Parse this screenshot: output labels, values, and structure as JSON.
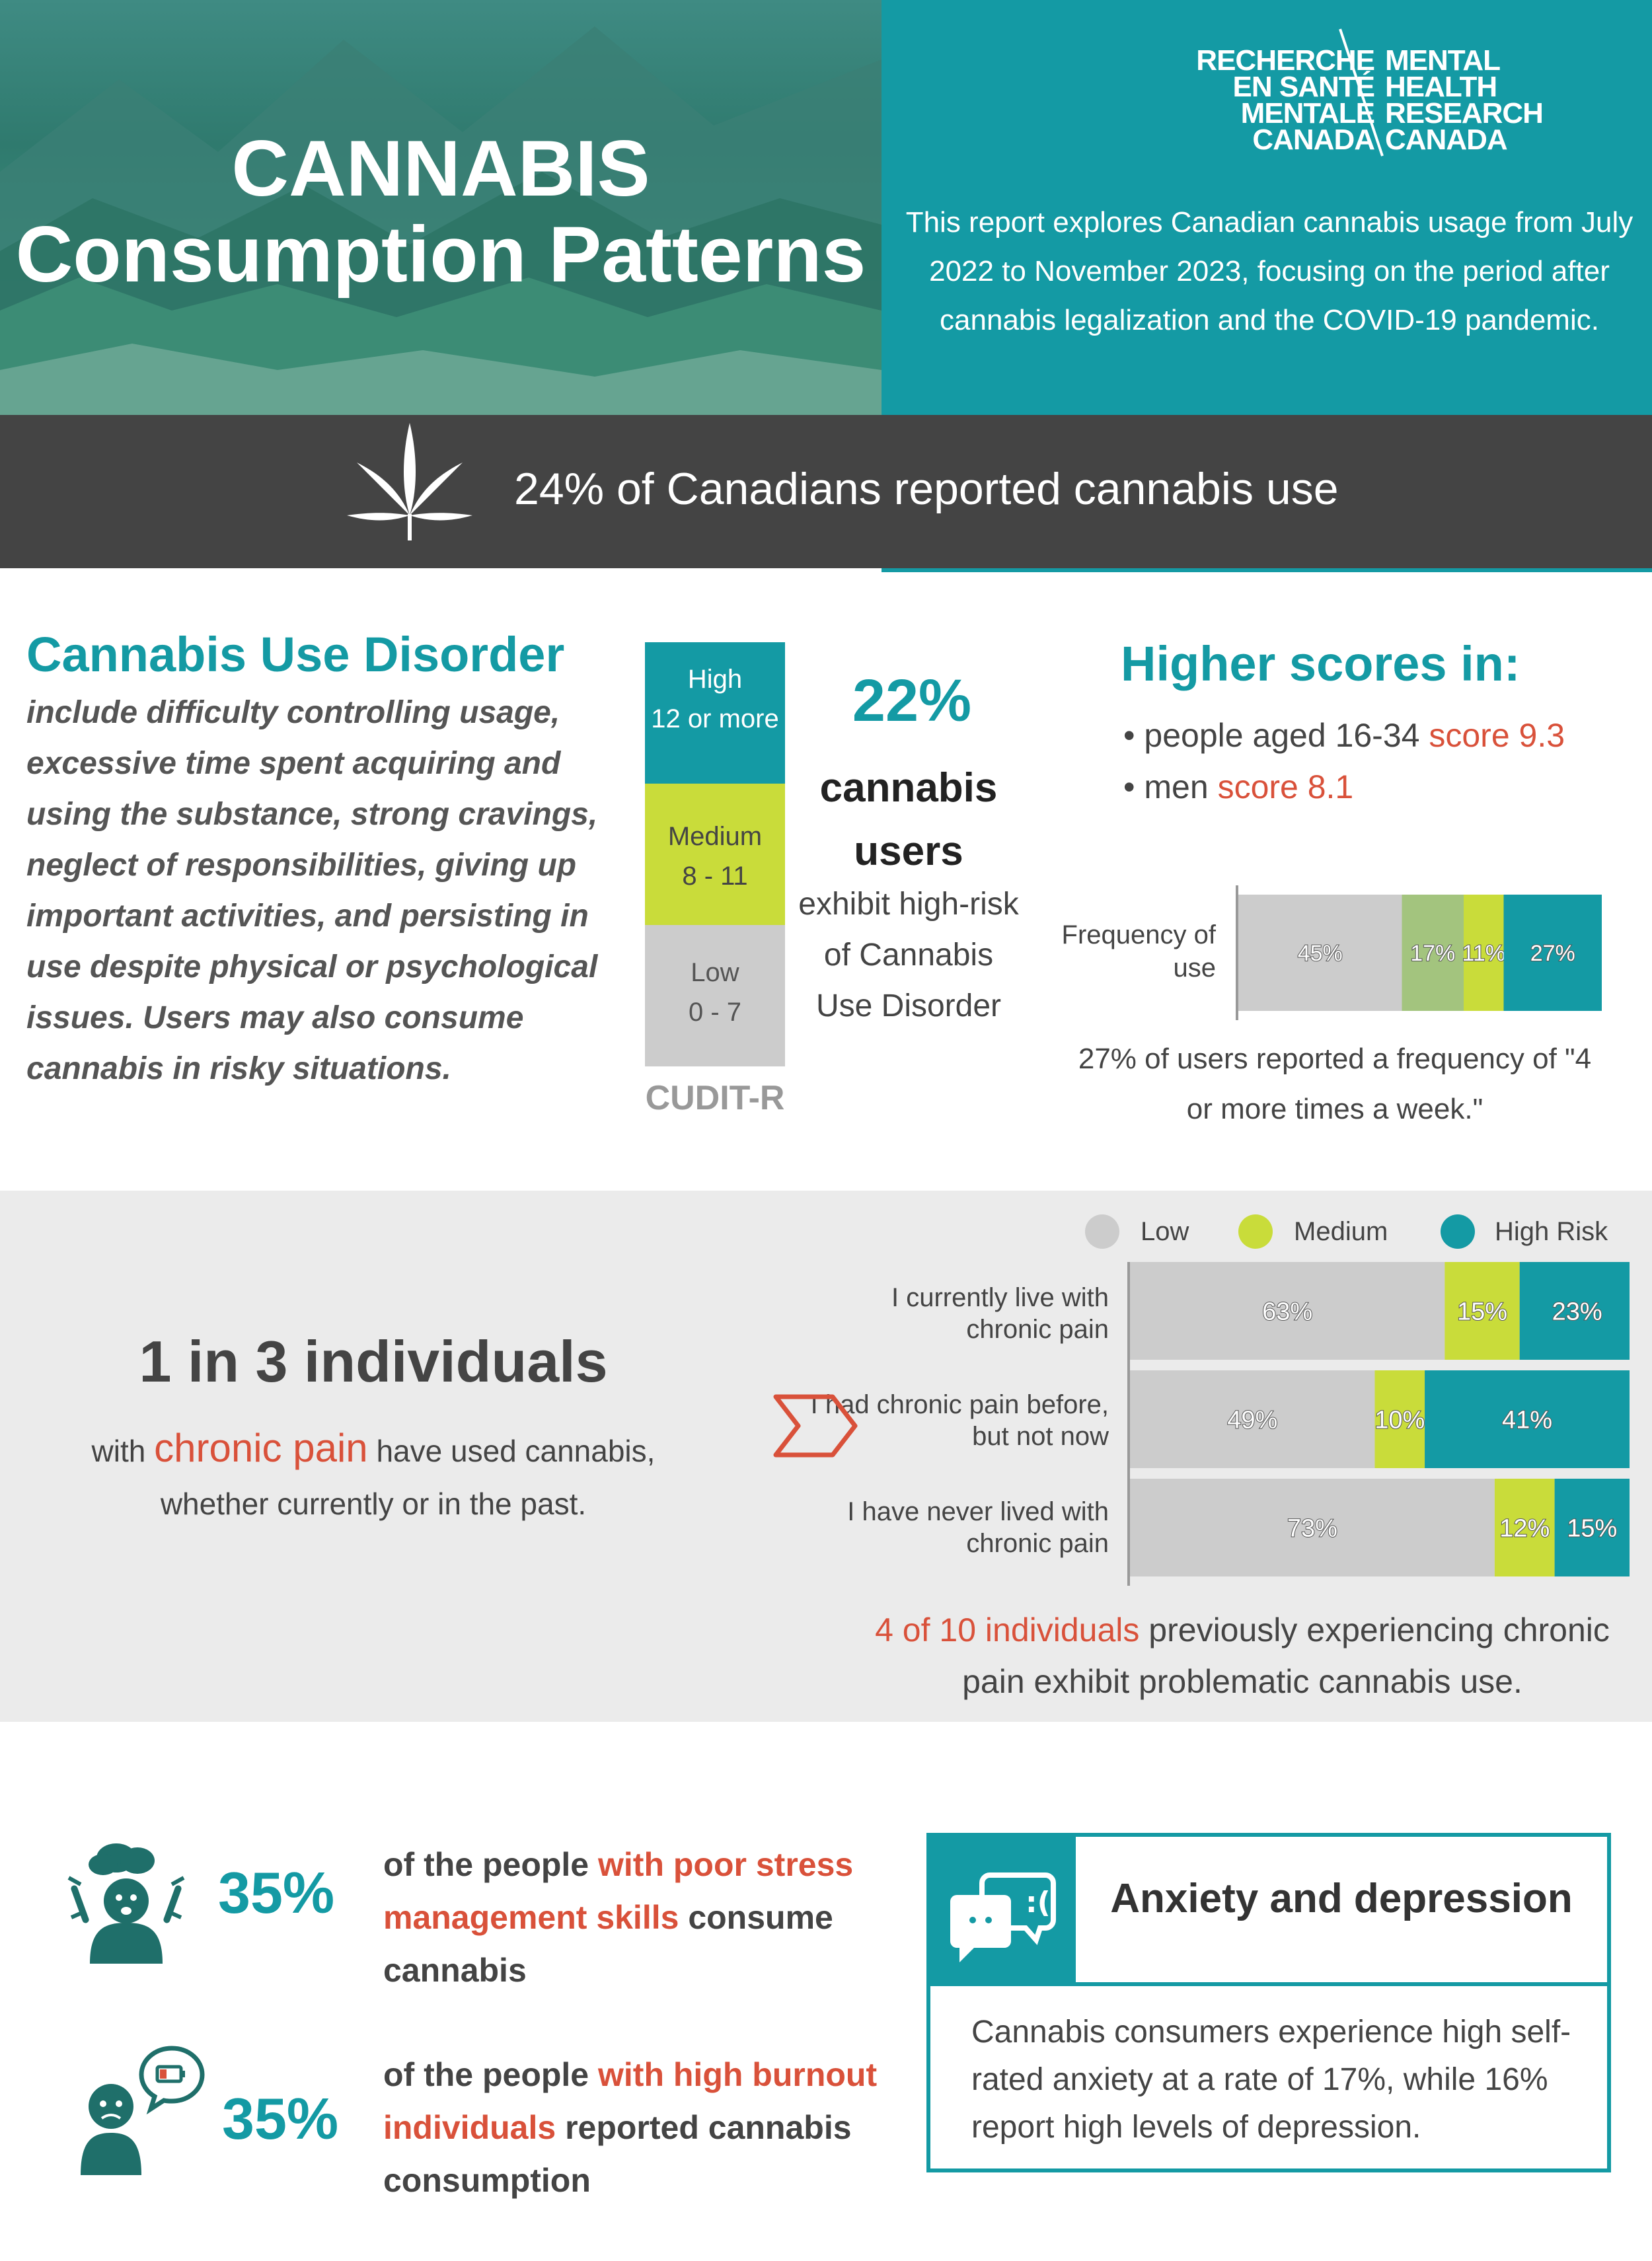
{
  "header": {
    "title_line1": "CANNABIS",
    "title_line2": "Consumption Patterns",
    "logo_fr": [
      "RECHERCHE",
      "EN SANTÉ",
      "MENTALE",
      "CANADA"
    ],
    "logo_en": [
      "MENTAL",
      "HEALTH",
      "RESEARCH",
      "CANADA"
    ],
    "intro": "This report explores Canadian cannabis usage from July 2022 to November 2023, focusing on the period after cannabis legalization and the COVID-19 pandemic."
  },
  "band": {
    "text": "24% of Canadians reported cannabis use",
    "icon": "cannabis-leaf-icon"
  },
  "cud": {
    "title": "Cannabis Use Disorder",
    "description": "include difficulty controlling usage, excessive time spent acquiring and using the substance, strong cravings, neglect of responsibilities, giving up important activities, and persisting in use despite physical or psychological issues. Users may also consume cannabis in risky situations.",
    "scale": [
      {
        "label": "High",
        "range": "12 or more"
      },
      {
        "label": "Medium",
        "range": "8 - 11"
      },
      {
        "label": "Low",
        "range": "0 - 7"
      }
    ],
    "scale_name": "CUDIT-R",
    "stat_pct": "22%",
    "stat_line1": "cannabis users",
    "stat_line2": "exhibit high-risk of Cannabis Use Disorder"
  },
  "higher_scores": {
    "title": "Higher scores in:",
    "items": [
      {
        "label": "people aged 16-34",
        "score": "score 9.3"
      },
      {
        "label": "men",
        "score": "score 8.1"
      }
    ],
    "freq_label": "Frequency of use",
    "freq_note": "27% of users reported a frequency of \"4 or more times a week.\""
  },
  "pain": {
    "headline": "1 in 3 individuals",
    "sub_pre": "with",
    "sub_highlight": "chronic pain",
    "sub_post": "have used cannabis, whether currently or in the past.",
    "note_highlight": "4 of 10 individuals",
    "note_rest": "previously experiencing chronic pain exhibit problematic cannabis use."
  },
  "stats": [
    {
      "pct": "35%",
      "pre": "of the people",
      "highlight": "with poor stress management skills",
      "post": "consume cannabis",
      "icon": "stressed-person-icon"
    },
    {
      "pct": "35%",
      "pre": "of the people",
      "highlight": "with high burnout individuals",
      "post": "reported cannabis consumption",
      "icon": "burnout-person-icon"
    }
  ],
  "anxiety": {
    "title": "Anxiety and depression",
    "text": "Cannabis consumers experience high self-rated anxiety at a rate of 17%, while 16% report high levels of depression.",
    "icon": "sad-chat-icon"
  },
  "colors": {
    "teal": "#149aa4",
    "lime": "#c9dc3a",
    "gray": "#cccccc",
    "sage": "#a3c47e",
    "red": "#d9513a",
    "dark_band": "#444444"
  },
  "chart_data": [
    {
      "type": "bar",
      "orientation": "horizontal-stacked",
      "categories": [
        "Frequency of use"
      ],
      "series": [
        {
          "values": [
            45
          ],
          "color": "#cccccc"
        },
        {
          "values": [
            17
          ],
          "color": "#a3c47e"
        },
        {
          "values": [
            11
          ],
          "color": "#c9dc3a"
        },
        {
          "values": [
            27
          ],
          "color": "#149aa4"
        }
      ],
      "ylabel": "Frequency of use"
    },
    {
      "type": "bar",
      "orientation": "horizontal-stacked",
      "categories": [
        "I currently live with chronic pain",
        "I had chronic pain before, but not now",
        "I have never lived with chronic pain"
      ],
      "series": [
        {
          "name": "Low",
          "values": [
            63,
            49,
            73
          ],
          "color": "#cccccc"
        },
        {
          "name": "Medium",
          "values": [
            15,
            10,
            12
          ],
          "color": "#c9dc3a"
        },
        {
          "name": "High Risk",
          "values": [
            23,
            41,
            15
          ],
          "color": "#149aa4"
        }
      ],
      "legend": "top-right"
    }
  ]
}
